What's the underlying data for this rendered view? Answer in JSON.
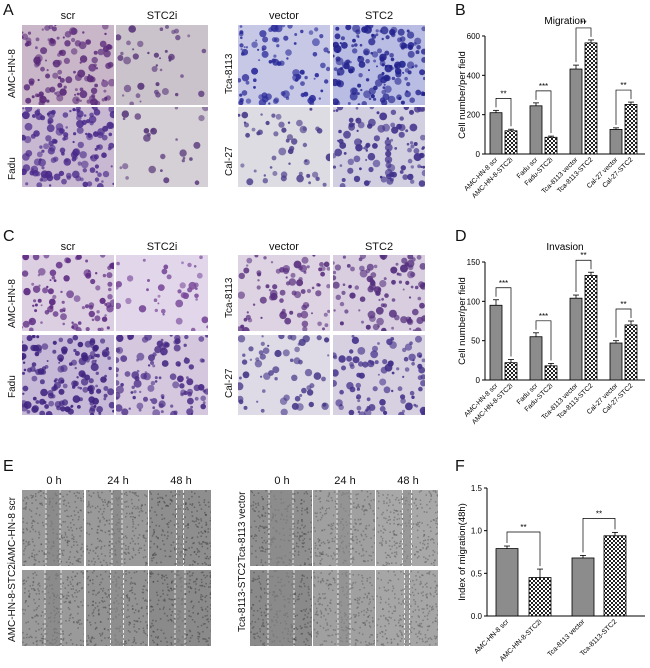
{
  "panels": {
    "A": {
      "label": "A",
      "left_cols": [
        "scr",
        "STC2i"
      ],
      "right_cols": [
        "vector",
        "STC2"
      ],
      "left_rows": [
        "AMC-HN-8",
        "Fadu"
      ],
      "right_rows": [
        "Tca-8113",
        "Cal-27"
      ]
    },
    "B": {
      "label": "B"
    },
    "C": {
      "label": "C",
      "left_cols": [
        "scr",
        "STC2i"
      ],
      "right_cols": [
        "vector",
        "STC2"
      ],
      "left_rows": [
        "AMC-HN-8",
        "Fadu"
      ],
      "right_rows": [
        "Tca-8113",
        "Cal-27"
      ]
    },
    "D": {
      "label": "D"
    },
    "E": {
      "label": "E",
      "cols": [
        "0 h",
        "24 h",
        "48 h"
      ],
      "left_rows": [
        "AMC-HN-8 scr",
        "AMC-HN-8-STC2i"
      ],
      "right_rows": [
        "Tca-8113 vector",
        "Tca-8113-STC2"
      ]
    },
    "F": {
      "label": "F"
    }
  },
  "chart_data": [
    {
      "id": "B",
      "type": "bar",
      "title": "Migration",
      "ylabel": "Cell number/per field",
      "ylim": [
        0,
        600
      ],
      "yticks": [
        0,
        200,
        400,
        600
      ],
      "categories": [
        "AMC-HN-8 scr",
        "AMC-HN-8-STC2i",
        "Fadu scr",
        "Fadu-STC2i",
        "Tca-8113 vector",
        "Tca-8113-STC2",
        "Cal-27 vector",
        "Cal-27-STC2"
      ],
      "values": [
        210,
        118,
        245,
        85,
        432,
        565,
        125,
        252
      ],
      "errors": [
        12,
        8,
        15,
        6,
        20,
        15,
        8,
        12
      ],
      "significance": [
        {
          "pair": [
            0,
            1
          ],
          "label": "**"
        },
        {
          "pair": [
            2,
            3
          ],
          "label": "***"
        },
        {
          "pair": [
            4,
            5
          ],
          "label": "**"
        },
        {
          "pair": [
            6,
            7
          ],
          "label": "**"
        }
      ]
    },
    {
      "id": "D",
      "type": "bar",
      "title": "Invasion",
      "ylabel": "Cell number/per field",
      "ylim": [
        0,
        150
      ],
      "yticks": [
        0,
        50,
        100,
        150
      ],
      "categories": [
        "AMC-HN-8 scr",
        "AMC-HN-8-STC2i",
        "Fadu scr",
        "Fadu-STC2i",
        "Tca-8113 vector",
        "Tca-8113-STC2",
        "Cal-27 vector",
        "Cal-27-STC2"
      ],
      "values": [
        95,
        22,
        55,
        18,
        104,
        133,
        47,
        70
      ],
      "errors": [
        7,
        4,
        5,
        3,
        4,
        4,
        3,
        5
      ],
      "significance": [
        {
          "pair": [
            0,
            1
          ],
          "label": "***"
        },
        {
          "pair": [
            2,
            3
          ],
          "label": "***"
        },
        {
          "pair": [
            4,
            5
          ],
          "label": "**"
        },
        {
          "pair": [
            6,
            7
          ],
          "label": "**"
        }
      ]
    },
    {
      "id": "F",
      "type": "bar",
      "title": "",
      "ylabel": "Index of migration(48h)",
      "ylim": [
        0,
        1.5
      ],
      "yticks": [
        0.0,
        0.5,
        1.0,
        1.5
      ],
      "categories": [
        "AMC-HN-8 scr",
        "AMC-HN-8-STC2i",
        "Tca-8113 vector",
        "Tca-8113-STC2"
      ],
      "values": [
        0.79,
        0.45,
        0.68,
        0.94
      ],
      "errors": [
        0.03,
        0.1,
        0.03,
        0.04
      ],
      "significance": [
        {
          "pair": [
            0,
            1
          ],
          "label": "**"
        },
        {
          "pair": [
            2,
            3
          ],
          "label": "**"
        }
      ]
    }
  ]
}
